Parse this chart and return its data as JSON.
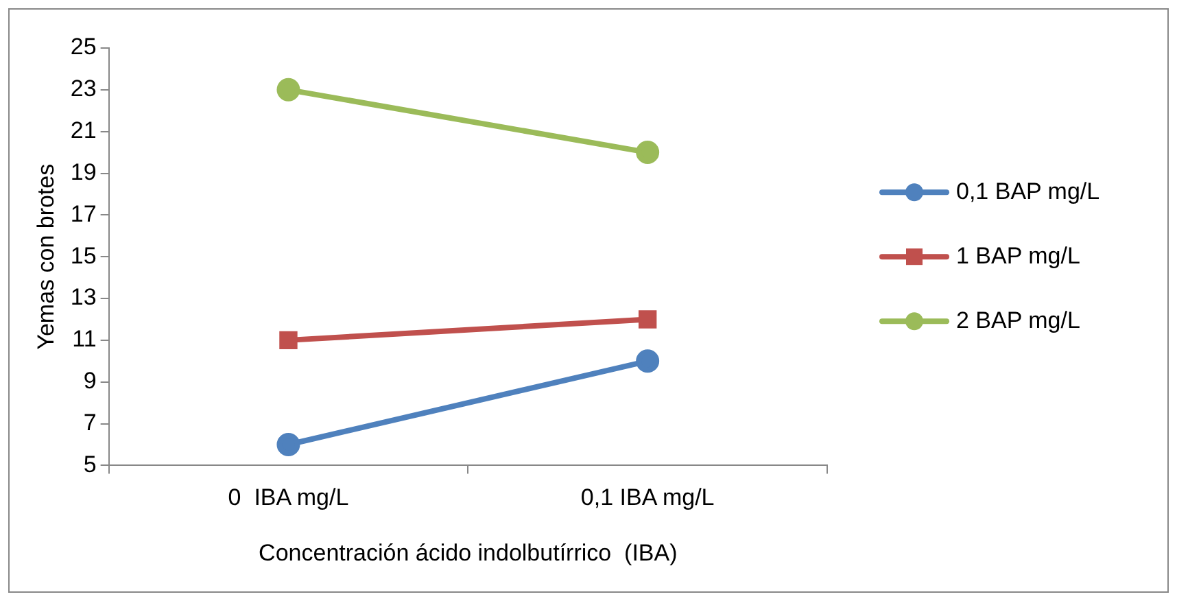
{
  "chart_data": {
    "type": "line",
    "xlabel": "Concentración ácido indolbutírrico  (IBA)",
    "ylabel": "Yemas con brotes",
    "categories": [
      "0  IBA mg/L",
      "0,1 IBA mg/L"
    ],
    "series": [
      {
        "name": "0,1 BAP mg/L",
        "color": "#4f81bd",
        "values": [
          6,
          10
        ],
        "marker": "circle"
      },
      {
        "name": "1 BAP mg/L",
        "color": "#c0504d",
        "values": [
          11,
          12
        ],
        "marker": "square"
      },
      {
        "name": "2 BAP mg/L",
        "color": "#9bbb59",
        "values": [
          23,
          20
        ],
        "marker": "circle"
      }
    ],
    "ylim": [
      5,
      25
    ],
    "yticks": [
      5,
      7,
      9,
      11,
      13,
      15,
      17,
      19,
      21,
      23,
      25
    ],
    "grid": false,
    "legend": "right"
  }
}
